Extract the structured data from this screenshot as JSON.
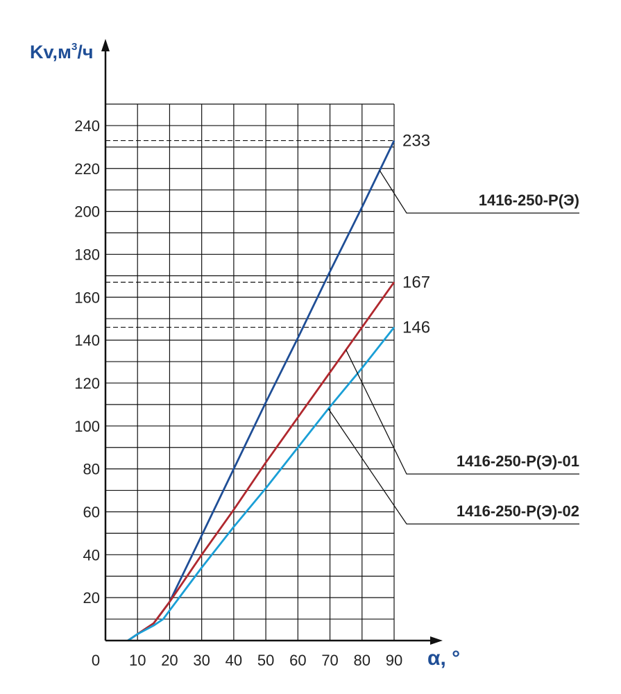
{
  "chart_data": {
    "type": "line",
    "ylabel_base": "Kv,м",
    "ylabel_sup": "3",
    "ylabel_tail": "/ч",
    "xlabel": "α, °",
    "xlim": [
      0,
      90
    ],
    "ylim": [
      0,
      250
    ],
    "x_ticks": [
      0,
      10,
      20,
      30,
      40,
      50,
      60,
      70,
      80,
      90
    ],
    "y_ticks": [
      20,
      40,
      60,
      80,
      100,
      120,
      140,
      160,
      180,
      200,
      220,
      240
    ],
    "grid": true,
    "reference_lines": [
      233,
      167,
      146
    ],
    "end_values": [
      "233",
      "167",
      "146"
    ],
    "series": [
      {
        "name": "1416-250-Р(Э)",
        "color": "#1f4e96",
        "x": [
          7,
          10,
          15,
          17,
          20,
          30,
          40,
          50,
          60,
          70,
          80,
          90
        ],
        "y": [
          0,
          3,
          8,
          12,
          18,
          49,
          80,
          111,
          141,
          172,
          202,
          233
        ]
      },
      {
        "name": "1416-250-Р(Э)-01",
        "color": "#b0282e",
        "x": [
          7,
          10,
          15,
          17,
          20,
          30,
          40,
          50,
          60,
          70,
          80,
          90
        ],
        "y": [
          0,
          3,
          8,
          12,
          18,
          40,
          61,
          83,
          104,
          125,
          146,
          167
        ]
      },
      {
        "name": "1416-250-Р(Э)-02",
        "color": "#1a9fd6",
        "x": [
          7,
          10,
          15,
          18,
          20,
          30,
          40,
          50,
          60,
          70,
          80,
          90
        ],
        "y": [
          0,
          3,
          7,
          10,
          14,
          34,
          53,
          71,
          90,
          109,
          127,
          146
        ]
      }
    ]
  }
}
